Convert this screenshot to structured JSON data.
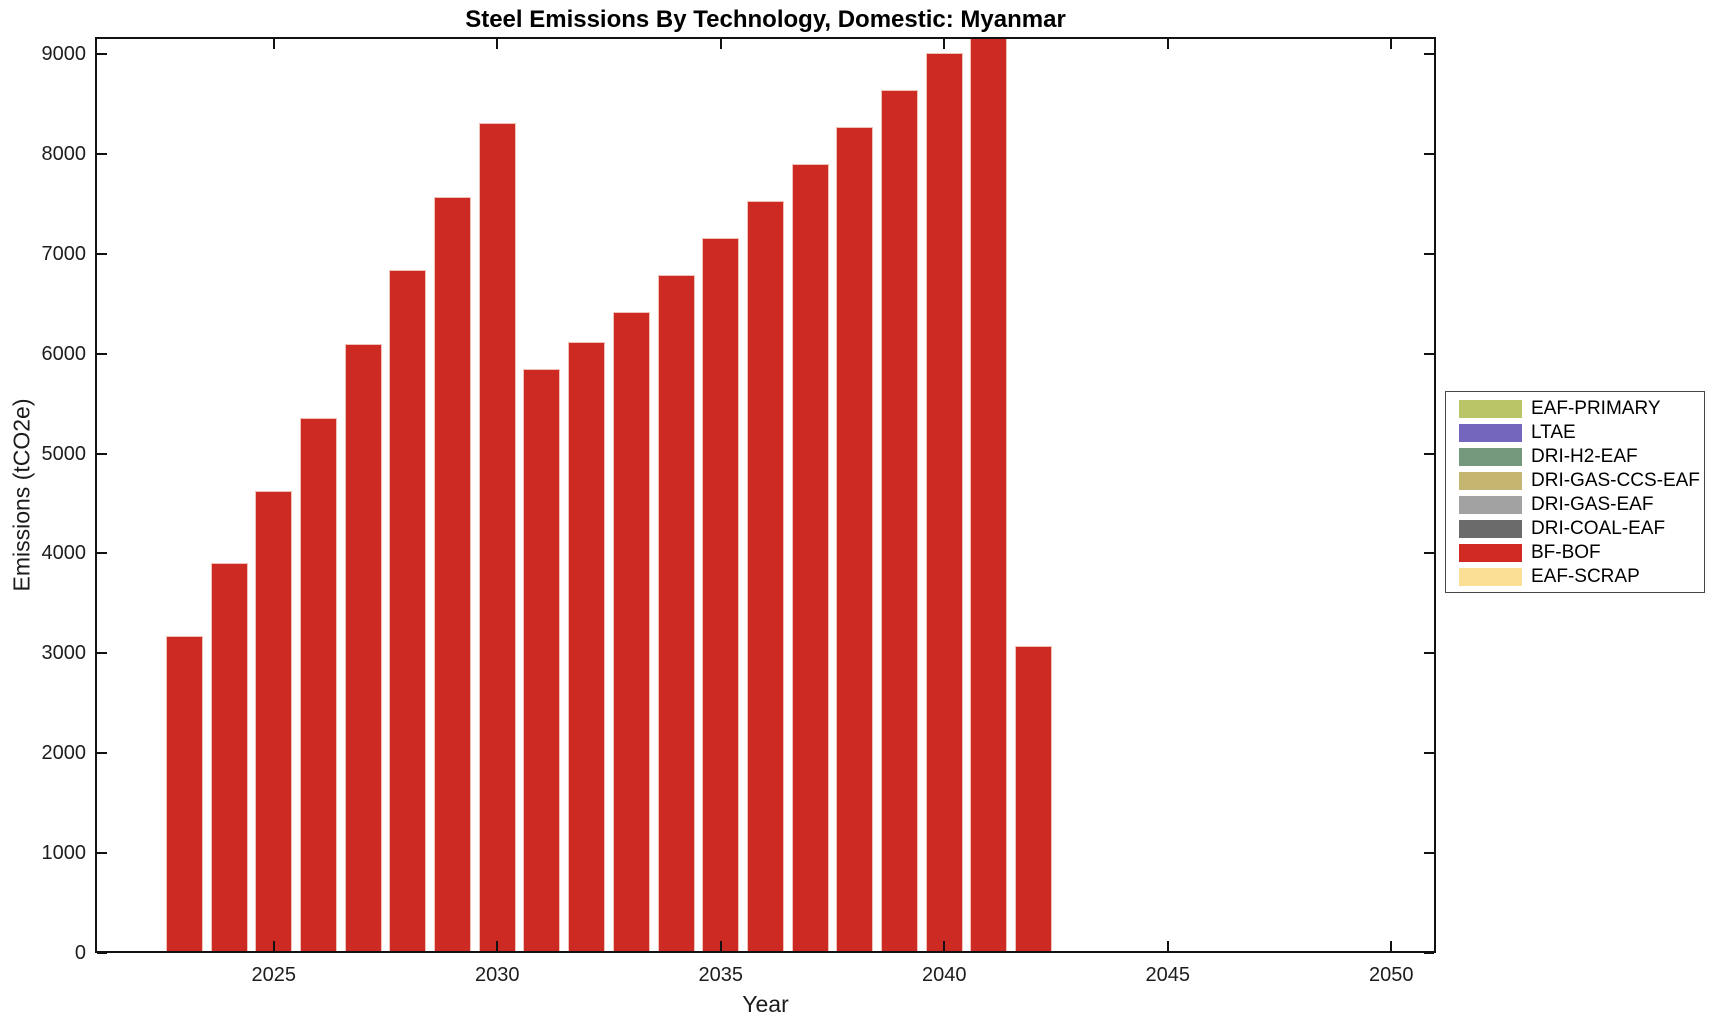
{
  "chart_data": {
    "type": "bar",
    "title": "Steel Emissions By Technology, Domestic: Myanmar",
    "xlabel": "Year",
    "ylabel": "Emissions (tCO2e)",
    "xlim": [
      2021,
      2051
    ],
    "ylim": [
      0,
      9170
    ],
    "xticks": [
      2025,
      2030,
      2035,
      2040,
      2045,
      2050
    ],
    "yticks": [
      0,
      1000,
      2000,
      3000,
      4000,
      5000,
      6000,
      7000,
      8000,
      9000
    ],
    "grid": false,
    "legend_position": "outside-right",
    "bar_width_years": 0.83,
    "bar_color": "#cd2a23",
    "bar_edge_color": "#f1c0b7",
    "series": [
      {
        "name": "BF-BOF",
        "x": [
          2023,
          2024,
          2025,
          2026,
          2027,
          2028,
          2029,
          2030,
          2031,
          2032,
          2033,
          2034,
          2035,
          2036,
          2037,
          2038,
          2039,
          2040,
          2041,
          2042
        ],
        "values": [
          3170,
          3905,
          4625,
          5360,
          6095,
          6835,
          7570,
          8310,
          5845,
          6115,
          6415,
          6785,
          7155,
          7525,
          7895,
          8265,
          8635,
          9010,
          9380,
          3070
        ],
        "note": "2041 bar exceeds y-axis range and is clipped at the top of the plot"
      }
    ],
    "legend_entries": [
      {
        "label": "EAF-PRIMARY",
        "color": "#b9c566"
      },
      {
        "label": "LTAE",
        "color": "#7465bd"
      },
      {
        "label": "DRI-H2-EAF",
        "color": "#74997d"
      },
      {
        "label": "DRI-GAS-CCS-EAF",
        "color": "#c4b570"
      },
      {
        "label": "DRI-GAS-EAF",
        "color": "#a2a2a2"
      },
      {
        "label": "DRI-COAL-EAF",
        "color": "#6b6b6b"
      },
      {
        "label": "BF-BOF",
        "color": "#d12a23"
      },
      {
        "label": "EAF-SCRAP",
        "color": "#fbdf94"
      }
    ]
  }
}
